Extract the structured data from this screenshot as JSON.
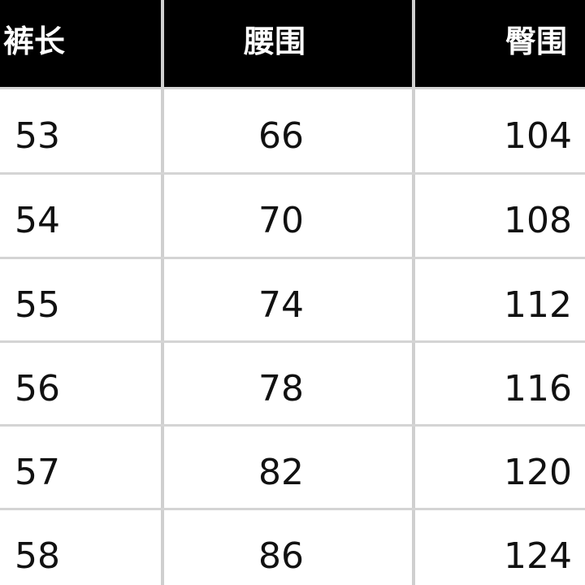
{
  "table": {
    "headers": [
      "裤长",
      "腰围",
      "臀围"
    ],
    "rows": [
      [
        "53",
        "66",
        "104"
      ],
      [
        "54",
        "70",
        "108"
      ],
      [
        "55",
        "74",
        "112"
      ],
      [
        "56",
        "78",
        "116"
      ],
      [
        "57",
        "82",
        "120"
      ],
      [
        "58",
        "86",
        "124"
      ]
    ]
  }
}
